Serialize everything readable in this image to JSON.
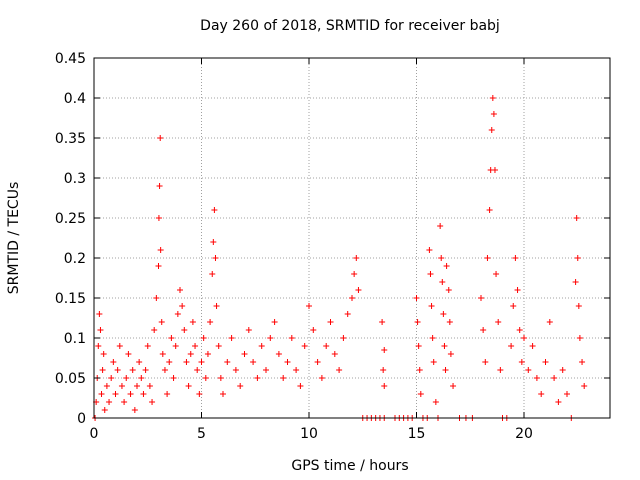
{
  "chart_data": {
    "type": "scatter",
    "title": "Day 260 of 2018, SRMTID for receiver babj",
    "xlabel": "GPS time / hours",
    "ylabel": "SRMTID / TECUs",
    "xlim": [
      0,
      24
    ],
    "ylim": [
      0,
      0.45
    ],
    "x_ticks": [
      0,
      5,
      10,
      15,
      20
    ],
    "x_tick_labels": [
      "0",
      "5",
      "10",
      "15",
      "20"
    ],
    "y_ticks": [
      0,
      0.05,
      0.1,
      0.15,
      0.2,
      0.25,
      0.3,
      0.35,
      0.4,
      0.45
    ],
    "y_tick_labels": [
      "0",
      "0.05",
      "0.1",
      "0.15",
      "0.2",
      "0.25",
      "0.3",
      "0.35",
      "0.4",
      "0.45"
    ],
    "grid": true,
    "grid_style": "dotted",
    "marker": "plus",
    "marker_color": "#ff0000",
    "series": [
      {
        "points": [
          [
            0.05,
            0.0
          ],
          [
            0.1,
            0.02
          ],
          [
            0.15,
            0.05
          ],
          [
            0.2,
            0.09
          ],
          [
            0.25,
            0.13
          ],
          [
            0.3,
            0.11
          ],
          [
            0.35,
            0.03
          ],
          [
            0.4,
            0.06
          ],
          [
            0.45,
            0.08
          ],
          [
            0.5,
            0.01
          ],
          [
            0.6,
            0.04
          ],
          [
            0.7,
            0.02
          ],
          [
            0.8,
            0.05
          ],
          [
            0.9,
            0.07
          ],
          [
            1.0,
            0.03
          ],
          [
            1.1,
            0.06
          ],
          [
            1.2,
            0.09
          ],
          [
            1.3,
            0.04
          ],
          [
            1.4,
            0.02
          ],
          [
            1.5,
            0.05
          ],
          [
            1.6,
            0.08
          ],
          [
            1.7,
            0.03
          ],
          [
            1.8,
            0.06
          ],
          [
            1.9,
            0.01
          ],
          [
            2.0,
            0.04
          ],
          [
            2.1,
            0.07
          ],
          [
            2.2,
            0.05
          ],
          [
            2.3,
            0.03
          ],
          [
            2.4,
            0.06
          ],
          [
            2.5,
            0.09
          ],
          [
            2.6,
            0.04
          ],
          [
            2.7,
            0.02
          ],
          [
            2.8,
            0.11
          ],
          [
            2.9,
            0.15
          ],
          [
            3.0,
            0.19
          ],
          [
            3.02,
            0.25
          ],
          [
            3.05,
            0.29
          ],
          [
            3.08,
            0.35
          ],
          [
            3.1,
            0.21
          ],
          [
            3.15,
            0.12
          ],
          [
            3.2,
            0.08
          ],
          [
            3.3,
            0.06
          ],
          [
            3.4,
            0.03
          ],
          [
            3.5,
            0.07
          ],
          [
            3.6,
            0.1
          ],
          [
            3.7,
            0.05
          ],
          [
            3.8,
            0.09
          ],
          [
            3.9,
            0.13
          ],
          [
            4.0,
            0.16
          ],
          [
            4.1,
            0.14
          ],
          [
            4.2,
            0.11
          ],
          [
            4.3,
            0.07
          ],
          [
            4.4,
            0.04
          ],
          [
            4.5,
            0.08
          ],
          [
            4.6,
            0.12
          ],
          [
            4.7,
            0.09
          ],
          [
            4.8,
            0.06
          ],
          [
            4.9,
            0.03
          ],
          [
            5.0,
            0.07
          ],
          [
            5.1,
            0.1
          ],
          [
            5.2,
            0.05
          ],
          [
            5.3,
            0.08
          ],
          [
            5.4,
            0.12
          ],
          [
            5.5,
            0.18
          ],
          [
            5.55,
            0.22
          ],
          [
            5.6,
            0.26
          ],
          [
            5.65,
            0.2
          ],
          [
            5.7,
            0.14
          ],
          [
            5.8,
            0.09
          ],
          [
            5.9,
            0.05
          ],
          [
            6.0,
            0.03
          ],
          [
            6.2,
            0.07
          ],
          [
            6.4,
            0.1
          ],
          [
            6.6,
            0.06
          ],
          [
            6.8,
            0.04
          ],
          [
            7.0,
            0.08
          ],
          [
            7.2,
            0.11
          ],
          [
            7.4,
            0.07
          ],
          [
            7.6,
            0.05
          ],
          [
            7.8,
            0.09
          ],
          [
            8.0,
            0.06
          ],
          [
            8.2,
            0.1
          ],
          [
            8.4,
            0.12
          ],
          [
            8.6,
            0.08
          ],
          [
            8.8,
            0.05
          ],
          [
            9.0,
            0.07
          ],
          [
            9.2,
            0.1
          ],
          [
            9.4,
            0.06
          ],
          [
            9.6,
            0.04
          ],
          [
            9.8,
            0.09
          ],
          [
            10.0,
            0.14
          ],
          [
            10.2,
            0.11
          ],
          [
            10.4,
            0.07
          ],
          [
            10.6,
            0.05
          ],
          [
            10.8,
            0.09
          ],
          [
            11.0,
            0.12
          ],
          [
            11.2,
            0.08
          ],
          [
            11.4,
            0.06
          ],
          [
            11.6,
            0.1
          ],
          [
            11.8,
            0.13
          ],
          [
            12.0,
            0.15
          ],
          [
            12.1,
            0.18
          ],
          [
            12.2,
            0.2
          ],
          [
            12.3,
            0.16
          ],
          [
            12.5,
            0.0
          ],
          [
            12.7,
            0.0
          ],
          [
            12.9,
            0.0
          ],
          [
            13.1,
            0.0
          ],
          [
            13.3,
            0.0
          ],
          [
            13.5,
            0.0
          ],
          [
            13.4,
            0.12
          ],
          [
            13.45,
            0.06
          ],
          [
            13.5,
            0.04
          ],
          [
            13.5,
            0.085
          ],
          [
            14.0,
            0.0
          ],
          [
            14.2,
            0.0
          ],
          [
            14.4,
            0.0
          ],
          [
            14.6,
            0.0
          ],
          [
            14.8,
            0.0
          ],
          [
            15.0,
            0.15
          ],
          [
            15.05,
            0.12
          ],
          [
            15.1,
            0.09
          ],
          [
            15.15,
            0.06
          ],
          [
            15.2,
            0.03
          ],
          [
            15.3,
            0.0
          ],
          [
            15.5,
            0.0
          ],
          [
            15.6,
            0.21
          ],
          [
            15.65,
            0.18
          ],
          [
            15.7,
            0.14
          ],
          [
            15.75,
            0.1
          ],
          [
            15.8,
            0.07
          ],
          [
            15.9,
            0.02
          ],
          [
            16.0,
            0.0
          ],
          [
            16.1,
            0.24
          ],
          [
            16.15,
            0.2
          ],
          [
            16.2,
            0.17
          ],
          [
            16.25,
            0.13
          ],
          [
            16.3,
            0.09
          ],
          [
            16.35,
            0.06
          ],
          [
            16.4,
            0.19
          ],
          [
            16.5,
            0.16
          ],
          [
            16.55,
            0.12
          ],
          [
            16.6,
            0.08
          ],
          [
            16.7,
            0.04
          ],
          [
            17.0,
            0.0
          ],
          [
            17.3,
            0.0
          ],
          [
            17.6,
            0.0
          ],
          [
            18.0,
            0.15
          ],
          [
            18.1,
            0.11
          ],
          [
            18.2,
            0.07
          ],
          [
            18.3,
            0.2
          ],
          [
            18.4,
            0.26
          ],
          [
            18.45,
            0.31
          ],
          [
            18.5,
            0.36
          ],
          [
            18.55,
            0.4
          ],
          [
            18.6,
            0.38
          ],
          [
            18.65,
            0.31
          ],
          [
            18.7,
            0.18
          ],
          [
            18.8,
            0.12
          ],
          [
            18.9,
            0.06
          ],
          [
            19.0,
            0.0
          ],
          [
            19.2,
            0.0
          ],
          [
            19.4,
            0.09
          ],
          [
            19.5,
            0.14
          ],
          [
            19.6,
            0.2
          ],
          [
            19.7,
            0.16
          ],
          [
            19.8,
            0.11
          ],
          [
            19.9,
            0.07
          ],
          [
            20.0,
            0.1
          ],
          [
            20.2,
            0.06
          ],
          [
            20.4,
            0.09
          ],
          [
            20.6,
            0.05
          ],
          [
            20.8,
            0.03
          ],
          [
            21.0,
            0.07
          ],
          [
            21.2,
            0.12
          ],
          [
            21.4,
            0.05
          ],
          [
            21.6,
            0.02
          ],
          [
            21.8,
            0.06
          ],
          [
            22.0,
            0.03
          ],
          [
            22.2,
            0.0
          ],
          [
            22.4,
            0.17
          ],
          [
            22.45,
            0.25
          ],
          [
            22.5,
            0.2
          ],
          [
            22.55,
            0.14
          ],
          [
            22.6,
            0.1
          ],
          [
            22.7,
            0.07
          ],
          [
            22.8,
            0.04
          ]
        ]
      }
    ]
  }
}
